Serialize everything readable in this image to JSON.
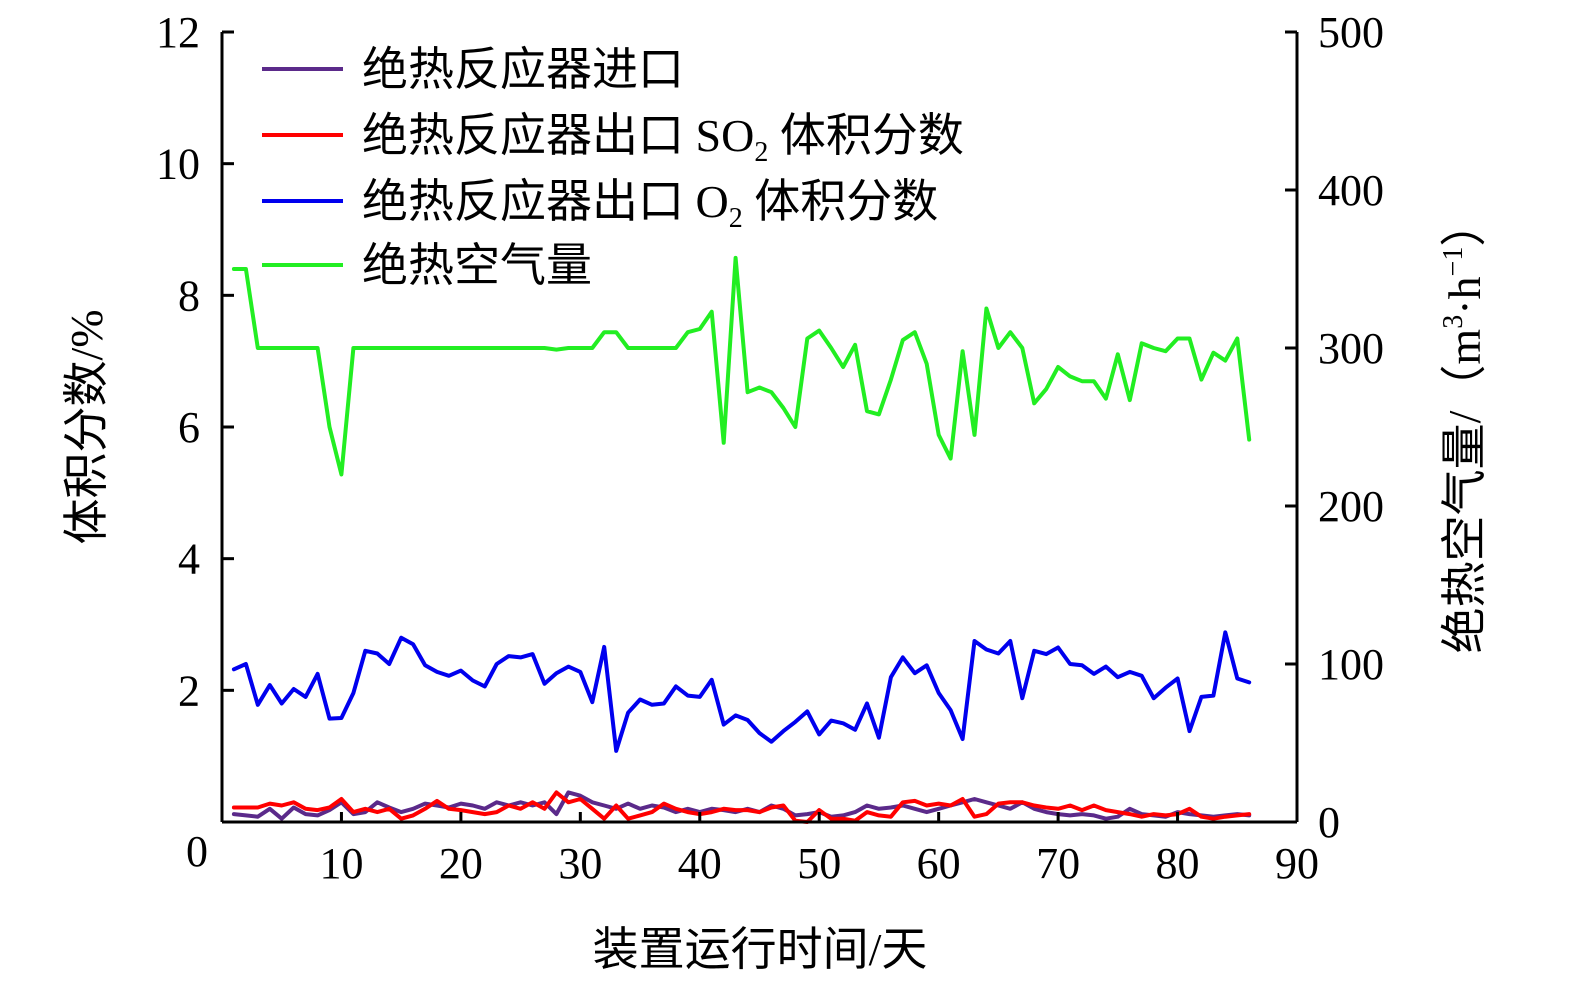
{
  "chart_data": {
    "type": "line",
    "xlabel": "装置运行时间/天",
    "ylabel_left": "体积分数/%",
    "ylabel_right": "绝热空气量/（m³·h⁻¹）",
    "ylabel_right_parts": {
      "text": "绝热空气量/（m",
      "sup1": "3",
      "dot": "·h",
      "sup2": "−1",
      "close": "）"
    },
    "xlim": [
      0,
      90
    ],
    "ylim_left": [
      0,
      12
    ],
    "ylim_right": [
      0,
      500
    ],
    "x_ticks": [
      0,
      10,
      20,
      30,
      40,
      50,
      60,
      70,
      80,
      90
    ],
    "y_left_ticks": [
      0,
      2,
      4,
      6,
      8,
      10,
      12
    ],
    "y_right_ticks": [
      0,
      100,
      200,
      300,
      400,
      500
    ],
    "x_tick_labels": [
      "10",
      "20",
      "30",
      "40",
      "50",
      "60",
      "70",
      "80",
      "90"
    ],
    "y_left_tick_labels": [
      "2",
      "4",
      "6",
      "8",
      "10",
      "12"
    ],
    "y_right_tick_labels": [
      "0",
      "100",
      "200",
      "300",
      "400",
      "500"
    ],
    "origin_label": "0",
    "grid": false,
    "legend_position": "top-left",
    "series": [
      {
        "name": "绝热反应器进口",
        "legend_parts": {
          "text": "绝热反应器进口"
        },
        "color": "#5b2a8a",
        "axis": "left",
        "x": [
          1,
          2,
          3,
          4,
          5,
          6,
          7,
          8,
          9,
          10,
          11,
          12,
          13,
          14,
          15,
          16,
          17,
          18,
          19,
          20,
          21,
          22,
          23,
          24,
          25,
          26,
          27,
          28,
          29,
          30,
          31,
          32,
          33,
          34,
          35,
          36,
          37,
          38,
          39,
          40,
          41,
          42,
          43,
          44,
          45,
          46,
          47,
          48,
          49,
          50,
          51,
          52,
          53,
          54,
          55,
          56,
          57,
          58,
          59,
          60,
          61,
          62,
          63,
          64,
          65,
          66,
          67,
          68,
          69,
          70,
          71,
          72,
          73,
          74,
          75,
          76,
          77,
          78,
          79,
          80,
          81,
          82,
          83,
          84,
          85,
          86
        ],
        "y": [
          0.12,
          0.1,
          0.08,
          0.2,
          0.05,
          0.22,
          0.12,
          0.1,
          0.18,
          0.3,
          0.12,
          0.15,
          0.3,
          0.22,
          0.15,
          0.2,
          0.28,
          0.25,
          0.22,
          0.28,
          0.25,
          0.2,
          0.3,
          0.25,
          0.3,
          0.25,
          0.3,
          0.12,
          0.45,
          0.4,
          0.3,
          0.25,
          0.2,
          0.28,
          0.2,
          0.25,
          0.22,
          0.15,
          0.2,
          0.15,
          0.2,
          0.18,
          0.15,
          0.2,
          0.15,
          0.25,
          0.2,
          0.1,
          0.12,
          0.15,
          0.08,
          0.1,
          0.15,
          0.25,
          0.2,
          0.22,
          0.25,
          0.2,
          0.15,
          0.2,
          0.25,
          0.3,
          0.35,
          0.3,
          0.25,
          0.2,
          0.3,
          0.2,
          0.15,
          0.12,
          0.1,
          0.12,
          0.1,
          0.05,
          0.08,
          0.2,
          0.12,
          0.1,
          0.08,
          0.15,
          0.12,
          0.1,
          0.08,
          0.1,
          0.12,
          0.1
        ]
      },
      {
        "name": "绝热反应器出口 SO2 体积分数",
        "legend_parts": {
          "text": "绝热反应器出口 SO",
          "sub": "2",
          "suffix": " 体积分数"
        },
        "color": "#ff0000",
        "axis": "left",
        "x": [
          1,
          2,
          3,
          4,
          5,
          6,
          7,
          8,
          9,
          10,
          11,
          12,
          13,
          14,
          15,
          16,
          17,
          18,
          19,
          20,
          21,
          22,
          23,
          24,
          25,
          26,
          27,
          28,
          29,
          30,
          31,
          32,
          33,
          34,
          35,
          36,
          37,
          38,
          39,
          40,
          41,
          42,
          43,
          44,
          45,
          46,
          47,
          48,
          49,
          50,
          51,
          52,
          53,
          54,
          55,
          56,
          57,
          58,
          59,
          60,
          61,
          62,
          63,
          64,
          65,
          66,
          67,
          68,
          69,
          70,
          71,
          72,
          73,
          74,
          75,
          76,
          77,
          78,
          79,
          80,
          81,
          82,
          83,
          84,
          85,
          86
        ],
        "y": [
          0.22,
          0.22,
          0.22,
          0.28,
          0.25,
          0.3,
          0.2,
          0.18,
          0.22,
          0.35,
          0.15,
          0.2,
          0.15,
          0.2,
          0.05,
          0.1,
          0.2,
          0.32,
          0.2,
          0.18,
          0.15,
          0.12,
          0.15,
          0.25,
          0.2,
          0.3,
          0.2,
          0.45,
          0.3,
          0.35,
          0.2,
          0.05,
          0.25,
          0.05,
          0.1,
          0.15,
          0.28,
          0.2,
          0.15,
          0.12,
          0.15,
          0.2,
          0.18,
          0.18,
          0.15,
          0.22,
          0.25,
          0.02,
          0.0,
          0.18,
          0.05,
          0.05,
          0.02,
          0.15,
          0.1,
          0.08,
          0.3,
          0.32,
          0.25,
          0.28,
          0.25,
          0.35,
          0.08,
          0.12,
          0.28,
          0.3,
          0.3,
          0.25,
          0.22,
          0.2,
          0.25,
          0.18,
          0.25,
          0.18,
          0.15,
          0.12,
          0.08,
          0.12,
          0.1,
          0.12,
          0.2,
          0.08,
          0.05,
          0.08,
          0.1,
          0.12
        ]
      },
      {
        "name": "绝热反应器出口 O2 体积分数",
        "legend_parts": {
          "text": "绝热反应器出口 O",
          "sub": "2",
          "suffix": " 体积分数"
        },
        "color": "#0000ee",
        "axis": "left",
        "x": [
          1,
          2,
          3,
          4,
          5,
          6,
          7,
          8,
          9,
          10,
          11,
          12,
          13,
          14,
          15,
          16,
          17,
          18,
          19,
          20,
          21,
          22,
          23,
          24,
          25,
          26,
          27,
          28,
          29,
          30,
          31,
          32,
          33,
          34,
          35,
          36,
          37,
          38,
          39,
          40,
          41,
          42,
          43,
          44,
          45,
          46,
          47,
          48,
          49,
          50,
          51,
          52,
          53,
          54,
          55,
          56,
          57,
          58,
          59,
          60,
          61,
          62,
          63,
          64,
          65,
          66,
          67,
          68,
          69,
          70,
          71,
          72,
          73,
          74,
          75,
          76,
          77,
          78,
          79,
          80,
          81,
          82,
          83,
          84,
          85,
          86
        ],
        "y": [
          2.32,
          2.4,
          1.78,
          2.08,
          1.8,
          2.02,
          1.9,
          2.25,
          1.57,
          1.58,
          1.96,
          2.6,
          2.56,
          2.4,
          2.8,
          2.7,
          2.38,
          2.28,
          2.22,
          2.3,
          2.15,
          2.06,
          2.4,
          2.52,
          2.5,
          2.55,
          2.1,
          2.26,
          2.36,
          2.28,
          1.82,
          2.66,
          1.08,
          1.66,
          1.86,
          1.78,
          1.8,
          2.06,
          1.92,
          1.9,
          2.16,
          1.48,
          1.62,
          1.55,
          1.35,
          1.22,
          1.38,
          1.52,
          1.68,
          1.33,
          1.54,
          1.5,
          1.4,
          1.8,
          1.28,
          2.2,
          2.5,
          2.26,
          2.38,
          1.96,
          1.7,
          1.26,
          2.75,
          2.62,
          2.56,
          2.75,
          1.88,
          2.6,
          2.55,
          2.65,
          2.4,
          2.38,
          2.25,
          2.36,
          2.2,
          2.28,
          2.22,
          1.88,
          2.04,
          2.18,
          1.38,
          1.9,
          1.92,
          2.88,
          2.18,
          2.12
        ]
      },
      {
        "name": "绝热空气量",
        "legend_parts": {
          "text": "绝热空气量"
        },
        "color": "#22ee22",
        "axis": "right",
        "x": [
          1,
          2,
          3,
          4,
          5,
          6,
          7,
          8,
          9,
          10,
          11,
          12,
          13,
          14,
          15,
          16,
          17,
          18,
          19,
          20,
          21,
          22,
          23,
          24,
          25,
          26,
          27,
          28,
          29,
          30,
          31,
          32,
          33,
          34,
          35,
          36,
          37,
          38,
          39,
          40,
          41,
          42,
          43,
          44,
          45,
          46,
          47,
          48,
          49,
          50,
          51,
          52,
          53,
          54,
          55,
          56,
          57,
          58,
          59,
          60,
          61,
          62,
          63,
          64,
          65,
          66,
          67,
          68,
          69,
          70,
          71,
          72,
          73,
          74,
          75,
          76,
          77,
          78,
          79,
          80,
          81,
          82,
          83,
          84,
          85,
          86
        ],
        "y": [
          350,
          350,
          300,
          300,
          300,
          300,
          300,
          300,
          250,
          220,
          300,
          300,
          300,
          300,
          300,
          300,
          300,
          300,
          300,
          300,
          300,
          300,
          300,
          300,
          300,
          300,
          300,
          299,
          300,
          300,
          300,
          310,
          310,
          300,
          300,
          300,
          300,
          300,
          310,
          312,
          323,
          240,
          357,
          272,
          275,
          272,
          262,
          250,
          306,
          311,
          300,
          288,
          302,
          260,
          258,
          280,
          305,
          310,
          290,
          245,
          230,
          298,
          245,
          325,
          300,
          310,
          300,
          265,
          274,
          288,
          282,
          279,
          279,
          268,
          296,
          267,
          303,
          300,
          298,
          306,
          306,
          280,
          297,
          292,
          306,
          242
        ]
      }
    ]
  }
}
